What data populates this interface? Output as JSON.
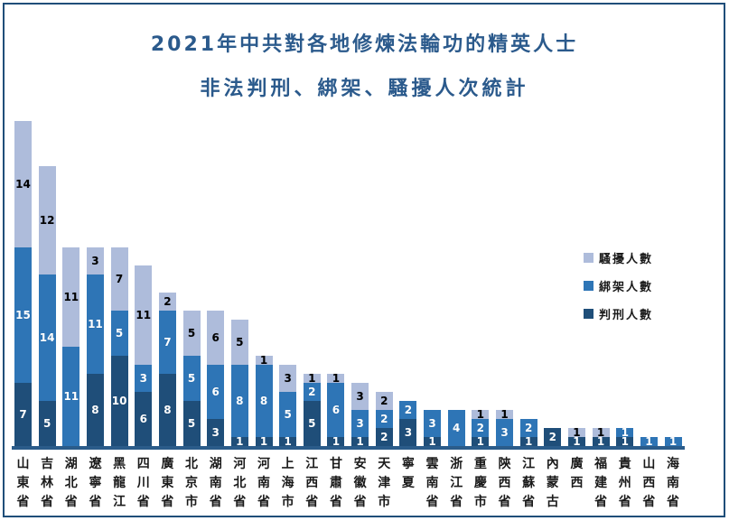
{
  "window": {
    "background": "#FFFFFF",
    "border_color": "#1F4E79"
  },
  "title": {
    "line1": "2021年中共對各地修煉法輪功的精英人士",
    "line2": "非法判刑、綁架、騷擾人次統計",
    "color": "#2B5A8C"
  },
  "legend": {
    "position": "right",
    "items": [
      {
        "label": "騷擾人數",
        "color": "#AEBCDB"
      },
      {
        "label": "綁架人數",
        "color": "#2E75B6"
      },
      {
        "label": "判刑人數",
        "color": "#1F4E79"
      }
    ]
  },
  "chart_data": {
    "type": "bar",
    "stacked": true,
    "title": "2021年中共對各地修煉法輪功的精英人士非法判刑、綁架、騷擾人次統計",
    "categories": [
      "山東省",
      "吉林省",
      "湖北省",
      "遼寧省",
      "黑龍江",
      "四川省",
      "廣東省",
      "北京市",
      "湖南省",
      "河北省",
      "河南省",
      "上海市",
      "江西省",
      "甘肅省",
      "安徽省",
      "天津市",
      "寧夏",
      "雲南省",
      "浙江省",
      "重慶市",
      "陝西省",
      "江蘇省",
      "內蒙古",
      "廣西",
      "福建省",
      "貴州省",
      "山西省",
      "海南省"
    ],
    "series": [
      {
        "name": "判刑人數",
        "color": "#1F4E79",
        "label_color": "#FFFFFF",
        "values": [
          7,
          5,
          0,
          8,
          10,
          6,
          8,
          5,
          3,
          1,
          1,
          1,
          5,
          1,
          1,
          2,
          3,
          1,
          0,
          1,
          0,
          1,
          2,
          1,
          1,
          1,
          0,
          0
        ]
      },
      {
        "name": "綁架人數",
        "color": "#2E75B6",
        "label_color": "#FFFFFF",
        "values": [
          15,
          14,
          11,
          11,
          5,
          3,
          7,
          5,
          6,
          8,
          8,
          5,
          2,
          6,
          3,
          2,
          2,
          3,
          4,
          2,
          3,
          2,
          0,
          0,
          0,
          1,
          1,
          1
        ]
      },
      {
        "name": "騷擾人數",
        "color": "#AEBCDB",
        "label_color": "#000000",
        "values": [
          14,
          12,
          11,
          3,
          7,
          11,
          2,
          5,
          6,
          5,
          1,
          3,
          1,
          1,
          3,
          2,
          0,
          0,
          0,
          1,
          1,
          0,
          0,
          1,
          1,
          0,
          0,
          0
        ]
      }
    ],
    "totals": [
      36,
      31,
      22,
      22,
      22,
      20,
      17,
      15,
      15,
      14,
      10,
      9,
      8,
      8,
      7,
      6,
      5,
      4,
      4,
      4,
      4,
      3,
      2,
      2,
      2,
      2,
      1,
      1
    ],
    "ylim": [
      0,
      36
    ],
    "grid": false,
    "data_labels": true,
    "legend_position": "right",
    "axis_line_color": "#2B5C8A",
    "series_stack_order_bottom_to_top": [
      "判刑人數",
      "綁架人數",
      "騷擾人數"
    ]
  }
}
